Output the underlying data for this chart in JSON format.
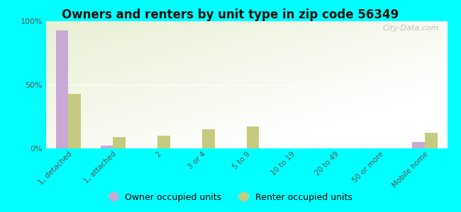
{
  "title": "Owners and renters by unit type in zip code 56349",
  "categories": [
    "1, detached",
    "1, attached",
    "2",
    "3 or 4",
    "5 to 9",
    "10 to 19",
    "20 to 49",
    "50 or more",
    "Mobile home"
  ],
  "owner_values": [
    93,
    2,
    0,
    0,
    0,
    0,
    0,
    0,
    5
  ],
  "renter_values": [
    43,
    9,
    10,
    15,
    17,
    0,
    0,
    0,
    12
  ],
  "owner_color": "#c9a8d4",
  "renter_color": "#c5ca7e",
  "background_color": "#00ffff",
  "plot_bg_color": "#e8f0d4",
  "ylim": [
    0,
    100
  ],
  "yticks": [
    0,
    50,
    100
  ],
  "ytick_labels": [
    "0%",
    "50%",
    "100%"
  ],
  "legend_owner": "Owner occupied units",
  "legend_renter": "Renter occupied units",
  "watermark": "City-Data.com",
  "bar_width": 0.28
}
